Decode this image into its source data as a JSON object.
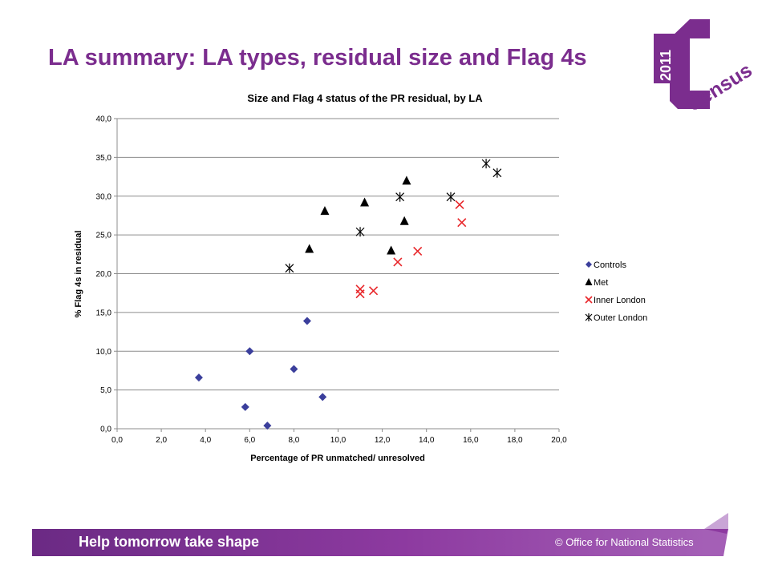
{
  "slide": {
    "title": "LA summary: LA types, residual size and Flag 4s"
  },
  "logo": {
    "year": "2011",
    "word": "Census",
    "color": "#7b2d8e"
  },
  "footer": {
    "tagline": "Help tomorrow take shape",
    "copyright": "© Office for National Statistics",
    "color": "#7b2d8e"
  },
  "chart_data": {
    "type": "scatter",
    "title": "Size and Flag 4 status of the PR residual, by LA",
    "xlabel": "Percentage  of PR unmatched/  unresolved",
    "ylabel": "% Flag 4s in residual",
    "xlim": [
      0,
      20
    ],
    "ylim": [
      0,
      40
    ],
    "x_ticks": [
      "0,0",
      "2,0",
      "4,0",
      "6,0",
      "8,0",
      "10,0",
      "12,0",
      "14,0",
      "16,0",
      "18,0",
      "20,0"
    ],
    "y_ticks": [
      "0,0",
      "5,0",
      "10,0",
      "15,0",
      "20,0",
      "25,0",
      "30,0",
      "35,0",
      "40,0"
    ],
    "grid": "horizontal",
    "legend_position": "right",
    "series": [
      {
        "name": "Controls",
        "marker": "diamond",
        "color": "#3b3f9c",
        "points": [
          [
            3.7,
            6.6
          ],
          [
            5.8,
            2.8
          ],
          [
            6.0,
            10.0
          ],
          [
            6.8,
            0.4
          ],
          [
            8.0,
            7.7
          ],
          [
            8.6,
            13.9
          ],
          [
            9.3,
            4.1
          ]
        ]
      },
      {
        "name": "Met",
        "marker": "triangle",
        "color": "#000000",
        "points": [
          [
            8.7,
            23.2
          ],
          [
            9.4,
            28.1
          ],
          [
            11.2,
            29.2
          ],
          [
            12.4,
            23.0
          ],
          [
            13.0,
            26.8
          ],
          [
            13.1,
            32.0
          ]
        ]
      },
      {
        "name": "Inner London",
        "marker": "x",
        "color": "#e8262a",
        "points": [
          [
            11.0,
            18.0
          ],
          [
            11.0,
            17.4
          ],
          [
            11.6,
            17.8
          ],
          [
            12.7,
            21.5
          ],
          [
            13.6,
            22.9
          ],
          [
            15.5,
            28.9
          ],
          [
            15.6,
            26.6
          ]
        ]
      },
      {
        "name": "Outer London",
        "marker": "asterisk",
        "color": "#000000",
        "points": [
          [
            7.8,
            20.7
          ],
          [
            11.0,
            25.4
          ],
          [
            12.8,
            29.9
          ],
          [
            15.1,
            29.9
          ],
          [
            16.7,
            34.2
          ],
          [
            17.2,
            33.0
          ]
        ]
      }
    ]
  }
}
